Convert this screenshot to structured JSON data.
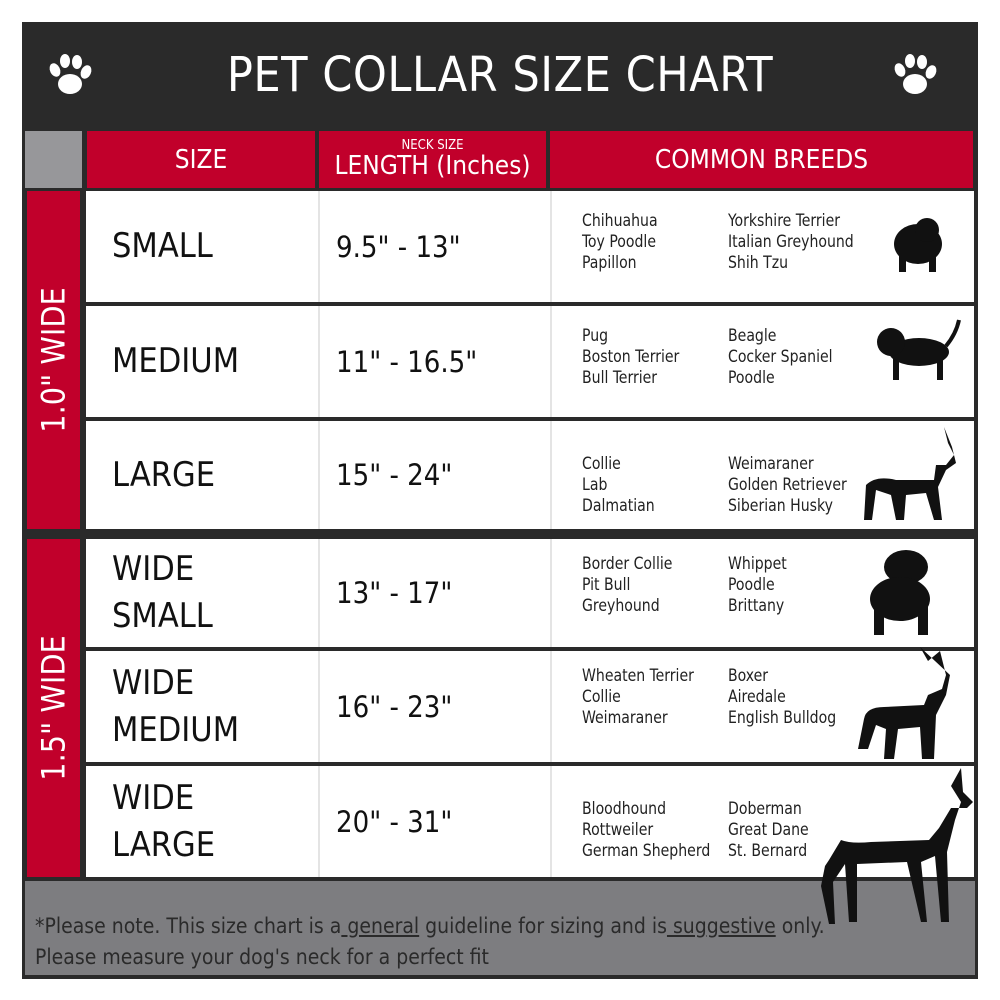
{
  "title": "PET COLLAR SIZE CHART",
  "icons": {
    "left": "paw-print-icon",
    "right": "paw-print-icon"
  },
  "header": {
    "size": "SIZE",
    "length_small": "NECK SIZE",
    "length": "LENGTH (Inches)",
    "breeds": "COMMON BREEDS"
  },
  "groups": [
    {
      "label": "1.0\" WIDE"
    },
    {
      "label": "1.5\" WIDE"
    }
  ],
  "rows": [
    {
      "size": "SMALL",
      "size2": "",
      "length": "9.5\" - 13\"",
      "breeds_a": [
        "Chihuahua",
        "Toy Poodle",
        "Papillon"
      ],
      "breeds_b": [
        "Yorkshire Terrier",
        "Italian Greyhound",
        "Shih Tzu"
      ],
      "silhouette": "small-dog-silhouette"
    },
    {
      "size": "MEDIUM",
      "size2": "",
      "length": "11\" - 16.5\"",
      "breeds_a": [
        "Pug",
        "Boston Terrier",
        "Bull Terrier"
      ],
      "breeds_b": [
        "Beagle",
        "Cocker Spaniel",
        "Poodle"
      ],
      "silhouette": "medium-dog-silhouette"
    },
    {
      "size": "LARGE",
      "size2": "",
      "length": "15\" - 24\"",
      "breeds_a": [
        "Collie",
        "Lab",
        "Dalmatian"
      ],
      "breeds_b": [
        "Weimaraner",
        "Golden Retriever",
        "Siberian Husky"
      ],
      "silhouette": "large-dog-silhouette"
    },
    {
      "size": "WIDE",
      "size2": "SMALL",
      "length": "13\" - 17\"",
      "breeds_a": [
        "Border Collie",
        "Pit Bull",
        "Greyhound"
      ],
      "breeds_b": [
        "Whippet",
        "Poodle",
        "Brittany"
      ],
      "silhouette": "bulldog-silhouette"
    },
    {
      "size": "WIDE",
      "size2": "MEDIUM",
      "length": "16\" - 23\"",
      "breeds_a": [
        "Wheaten Terrier",
        "Collie",
        "Weimaraner"
      ],
      "breeds_b": [
        "Boxer",
        "Airedale",
        "English Bulldog"
      ],
      "silhouette": "pitbull-silhouette"
    },
    {
      "size": "WIDE",
      "size2": "LARGE",
      "length": "20\" - 31\"",
      "breeds_a": [
        "Bloodhound",
        "Rottweiler",
        "German Shepherd"
      ],
      "breeds_b": [
        "Doberman",
        "Great Dane",
        "St. Bernard"
      ],
      "silhouette": "doberman-silhouette"
    }
  ],
  "footer": {
    "p1": "*Please note. This size chart is a",
    "u1": " general",
    "p2": " guideline for sizing and is",
    "u2": " suggestive",
    "p3": " only.",
    "line2": "Please measure your dog's neck for a perfect fit"
  },
  "colors": {
    "accent": "#c1002b",
    "frame": "#2a2a2a",
    "footer": "#7d7d80"
  }
}
